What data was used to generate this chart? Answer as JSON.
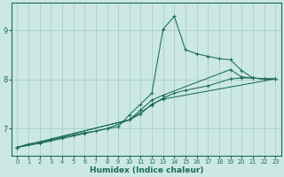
{
  "xlabel": "Humidex (Indice chaleur)",
  "bg_color": "#cce8e4",
  "grid_color": "#aacfcb",
  "line_color": "#1a6b5a",
  "xlim": [
    -0.5,
    23.5
  ],
  "ylim": [
    6.45,
    9.55
  ],
  "xticks": [
    0,
    1,
    2,
    3,
    4,
    5,
    6,
    7,
    8,
    9,
    10,
    11,
    12,
    13,
    14,
    15,
    16,
    17,
    18,
    19,
    20,
    21,
    22,
    23
  ],
  "yticks": [
    7,
    8,
    9
  ],
  "lines": [
    {
      "x": [
        0,
        1,
        2,
        3,
        4,
        5,
        6,
        7,
        8,
        9,
        10,
        11,
        12,
        13,
        14,
        15,
        16,
        17,
        18,
        19,
        20,
        21,
        22,
        23
      ],
      "y": [
        6.62,
        6.69,
        6.72,
        6.77,
        6.82,
        6.87,
        6.92,
        6.95,
        7.0,
        7.04,
        7.28,
        7.5,
        7.72,
        9.02,
        9.28,
        8.6,
        8.52,
        8.47,
        8.42,
        8.4,
        8.18,
        8.03,
        8.01,
        8.01
      ]
    },
    {
      "x": [
        0,
        2,
        4,
        6,
        8,
        10,
        12,
        13,
        14,
        15,
        17,
        19,
        20,
        21,
        22,
        23
      ],
      "y": [
        6.62,
        6.7,
        6.8,
        6.9,
        7.0,
        7.18,
        7.48,
        7.62,
        7.72,
        7.78,
        7.87,
        8.01,
        8.03,
        8.03,
        8.01,
        8.01
      ]
    },
    {
      "x": [
        0,
        10,
        11,
        12,
        13,
        19,
        20,
        21,
        22,
        23
      ],
      "y": [
        6.62,
        7.18,
        7.38,
        7.58,
        7.68,
        8.2,
        8.05,
        8.03,
        8.01,
        8.01
      ]
    },
    {
      "x": [
        0,
        10,
        11,
        12,
        13,
        23
      ],
      "y": [
        6.62,
        7.18,
        7.3,
        7.5,
        7.6,
        8.01
      ]
    }
  ]
}
